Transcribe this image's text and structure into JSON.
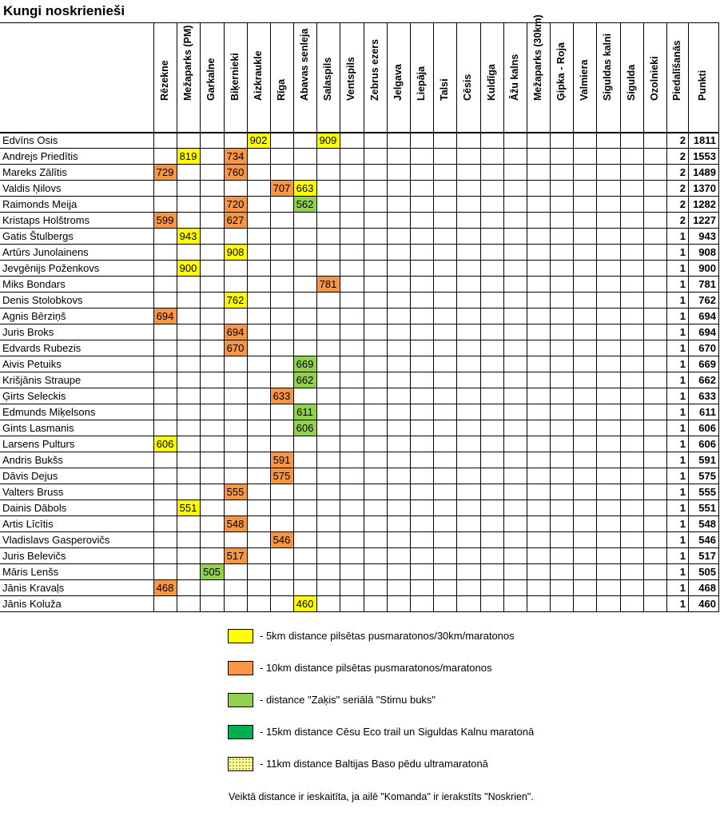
{
  "title": "Kungi noskrienieši",
  "columns": [
    "Rēzekne",
    "Mežaparks (PM)",
    "Garkalne",
    "Biķernieki",
    "Aizkraukle",
    "Rīga",
    "Abavas senleja",
    "Salaspils",
    "Ventspils",
    "Zebrus ezers",
    "Jelgava",
    "Liepāja",
    "Talsi",
    "Cēsis",
    "Kuldīga",
    "Āžu kalns",
    "Mežaparks (30km)",
    "Ģipka - Roja",
    "Valmiera",
    "Siguldas kalni",
    "Sigulda",
    "Ozolnieki"
  ],
  "participation_label": "Piedalīšanās",
  "points_label": "Punkti",
  "colors": {
    "yellow": "#ffff00",
    "orange": "#f79646",
    "green": "#92d050",
    "darkgreen": "#00b050",
    "dotted": "#ffff99"
  },
  "rows": [
    {
      "name": "Edvīns Osis",
      "scores": [
        {
          "col": 4,
          "value": "902",
          "color": "yellow"
        },
        {
          "col": 7,
          "value": "909",
          "color": "yellow"
        }
      ],
      "participation": "2",
      "points": "1811"
    },
    {
      "name": "Andrejs Priedītis",
      "scores": [
        {
          "col": 1,
          "value": "819",
          "color": "yellow"
        },
        {
          "col": 3,
          "value": "734",
          "color": "orange"
        }
      ],
      "participation": "2",
      "points": "1553"
    },
    {
      "name": "Mareks Zālītis",
      "scores": [
        {
          "col": 0,
          "value": "729",
          "color": "orange"
        },
        {
          "col": 3,
          "value": "760",
          "color": "orange"
        }
      ],
      "participation": "2",
      "points": "1489"
    },
    {
      "name": "Valdis Ņilovs",
      "scores": [
        {
          "col": 5,
          "value": "707",
          "color": "orange"
        },
        {
          "col": 6,
          "value": "663",
          "color": "yellow",
          "span": "left"
        }
      ],
      "participation": "2",
      "points": "1370"
    },
    {
      "name": "Raimonds Meija",
      "scores": [
        {
          "col": 3,
          "value": "720",
          "color": "orange"
        },
        {
          "col": 6,
          "value": "562",
          "color": "green"
        }
      ],
      "participation": "2",
      "points": "1282"
    },
    {
      "name": "Kristaps Holštroms",
      "scores": [
        {
          "col": 0,
          "value": "599",
          "color": "orange"
        },
        {
          "col": 3,
          "value": "627",
          "color": "orange"
        }
      ],
      "participation": "2",
      "points": "1227"
    },
    {
      "name": "Gatis Štulbergs",
      "scores": [
        {
          "col": 1,
          "value": "943",
          "color": "yellow"
        }
      ],
      "participation": "1",
      "points": "943"
    },
    {
      "name": "Artūrs Junolainens",
      "scores": [
        {
          "col": 3,
          "value": "908",
          "color": "yellow"
        }
      ],
      "participation": "1",
      "points": "908"
    },
    {
      "name": "Jevgēnijs Poženkovs",
      "scores": [
        {
          "col": 1,
          "value": "900",
          "color": "yellow"
        }
      ],
      "participation": "1",
      "points": "900"
    },
    {
      "name": "Miks Bondars",
      "scores": [
        {
          "col": 7,
          "value": "781",
          "color": "orange"
        }
      ],
      "participation": "1",
      "points": "781"
    },
    {
      "name": "Denis Stolobkovs",
      "scores": [
        {
          "col": 3,
          "value": "762",
          "color": "yellow"
        }
      ],
      "participation": "1",
      "points": "762"
    },
    {
      "name": "Agnis Bērziņš",
      "scores": [
        {
          "col": 0,
          "value": "694",
          "color": "orange"
        }
      ],
      "participation": "1",
      "points": "694"
    },
    {
      "name": "Juris Broks",
      "scores": [
        {
          "col": 3,
          "value": "694",
          "color": "orange"
        }
      ],
      "participation": "1",
      "points": "694"
    },
    {
      "name": "Edvards Rubezis",
      "scores": [
        {
          "col": 3,
          "value": "670",
          "color": "orange"
        }
      ],
      "participation": "1",
      "points": "670"
    },
    {
      "name": "Aivis Petuiks",
      "scores": [
        {
          "col": 6,
          "value": "669",
          "color": "green"
        }
      ],
      "participation": "1",
      "points": "669"
    },
    {
      "name": "Krišjānis Straupe",
      "scores": [
        {
          "col": 6,
          "value": "662",
          "color": "green"
        }
      ],
      "participation": "1",
      "points": "662"
    },
    {
      "name": "Ģirts Seleckis",
      "scores": [
        {
          "col": 5,
          "value": "633",
          "color": "orange"
        }
      ],
      "participation": "1",
      "points": "633"
    },
    {
      "name": "Edmunds Miķelsons",
      "scores": [
        {
          "col": 6,
          "value": "611",
          "color": "green"
        }
      ],
      "participation": "1",
      "points": "611"
    },
    {
      "name": "Gints Lasmanis",
      "scores": [
        {
          "col": 6,
          "value": "606",
          "color": "green"
        }
      ],
      "participation": "1",
      "points": "606"
    },
    {
      "name": "Larsens Pulturs",
      "scores": [
        {
          "col": 0,
          "value": "606",
          "color": "yellow"
        }
      ],
      "participation": "1",
      "points": "606"
    },
    {
      "name": "Andris Bukšs",
      "scores": [
        {
          "col": 5,
          "value": "591",
          "color": "orange"
        }
      ],
      "participation": "1",
      "points": "591"
    },
    {
      "name": "Dāvis Dejus",
      "scores": [
        {
          "col": 5,
          "value": "575",
          "color": "orange"
        }
      ],
      "participation": "1",
      "points": "575"
    },
    {
      "name": "Valters Bruss",
      "scores": [
        {
          "col": 3,
          "value": "555",
          "color": "orange"
        }
      ],
      "participation": "1",
      "points": "555"
    },
    {
      "name": "Dainis Dābols",
      "scores": [
        {
          "col": 1,
          "value": "551",
          "color": "yellow"
        }
      ],
      "participation": "1",
      "points": "551"
    },
    {
      "name": "Artis Līcītis",
      "scores": [
        {
          "col": 3,
          "value": "548",
          "color": "orange"
        }
      ],
      "participation": "1",
      "points": "548"
    },
    {
      "name": "Vladislavs Gasperovičs",
      "scores": [
        {
          "col": 5,
          "value": "546",
          "color": "orange"
        }
      ],
      "participation": "1",
      "points": "546"
    },
    {
      "name": "Juris Belevičs",
      "scores": [
        {
          "col": 3,
          "value": "517",
          "color": "orange"
        }
      ],
      "participation": "1",
      "points": "517"
    },
    {
      "name": "Māris Lenšs",
      "scores": [
        {
          "col": 2,
          "value": "505",
          "color": "green"
        }
      ],
      "participation": "1",
      "points": "505"
    },
    {
      "name": "Jānis Kravaļs",
      "scores": [
        {
          "col": 0,
          "value": "468",
          "color": "orange"
        }
      ],
      "participation": "1",
      "points": "468"
    },
    {
      "name": "Jānis Koluža",
      "scores": [
        {
          "col": 6,
          "value": "460",
          "color": "yellow",
          "span": "left"
        }
      ],
      "participation": "1",
      "points": "460"
    }
  ],
  "legend": [
    {
      "color": "yellow",
      "text": "- 5km distance pilsētas pusmaratonos/30km/maratonos"
    },
    {
      "color": "orange",
      "text": "- 10km distance pilsētas pusmaratonos/maratonos"
    },
    {
      "color": "green",
      "text": "- distance \"Zaķis\" seriālā \"Stirnu buks\""
    },
    {
      "color": "darkgreen",
      "text": "- 15km distance Cēsu Eco trail un Siguldas Kalnu maratonā"
    },
    {
      "color": "dotted",
      "text": "- 11km distance Baltijas Baso pēdu ultramaratonā"
    }
  ],
  "footnote": "Veiktā distance ir ieskaitīta, ja ailē \"Komanda\" ir ierakstīts \"Noskrien\"."
}
